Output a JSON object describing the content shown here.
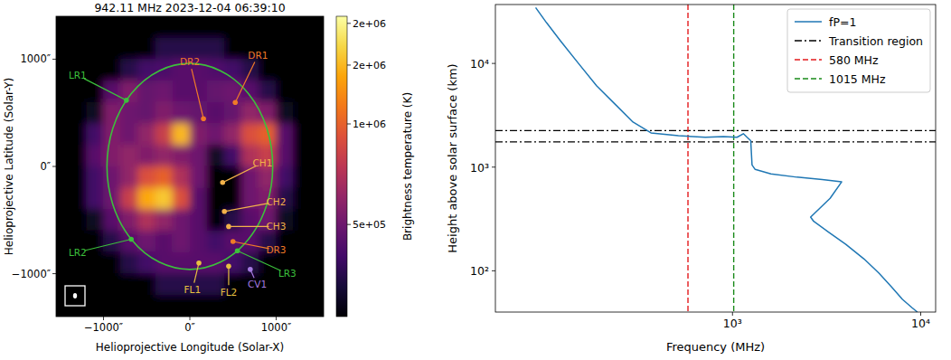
{
  "chart_data": [
    {
      "type": "heatmap",
      "title": "942.11 MHz 2023-12-04 06:39:10",
      "x_label": "Helioprojective Longitude (Solar-X)",
      "y_label": "Helioprojective Latitude (Solar-Y)",
      "xlim": [
        -1550,
        1550
      ],
      "ylim": [
        -1400,
        1400
      ],
      "xticks": [
        {
          "value": -1000,
          "label": "−1000″"
        },
        {
          "value": 0,
          "label": "0″"
        },
        {
          "value": 1000,
          "label": "1000″"
        }
      ],
      "yticks": [
        {
          "value": -1000,
          "label": "−1000″"
        },
        {
          "value": 0,
          "label": "0″"
        },
        {
          "value": 1000,
          "label": "1000″"
        }
      ],
      "x": [
        -1500,
        -1300,
        -1100,
        -900,
        -700,
        -500,
        -300,
        -100,
        100,
        300,
        500,
        700,
        900,
        1100,
        1300,
        1500
      ],
      "y": [
        1500,
        1300,
        1100,
        900,
        700,
        500,
        300,
        100,
        -100,
        -300,
        -500,
        -700,
        -900,
        -1100,
        -1300,
        -1500
      ],
      "values": [
        [
          100000,
          100000,
          100000,
          100000,
          100000,
          100000,
          100000,
          100000,
          100000,
          100000,
          100000,
          100000,
          100000,
          100000,
          100000,
          100000
        ],
        [
          100000,
          100000,
          100000,
          100000,
          100000,
          100000,
          100000,
          100000,
          100000,
          100000,
          100000,
          100000,
          100000,
          100000,
          100000,
          100000
        ],
        [
          100000,
          100000,
          100000,
          100000,
          100000,
          100000,
          350000,
          350000,
          350000,
          350000,
          100000,
          100000,
          100000,
          100000,
          100000,
          100000
        ],
        [
          100000,
          100000,
          100000,
          100000,
          350000,
          400000,
          420000,
          450000,
          450000,
          430000,
          400000,
          350000,
          100000,
          100000,
          100000,
          100000
        ],
        [
          100000,
          100000,
          100000,
          450000,
          550000,
          480000,
          500000,
          450000,
          450000,
          480000,
          500000,
          450000,
          350000,
          100000,
          100000,
          100000
        ],
        [
          100000,
          100000,
          300000,
          550000,
          500000,
          480000,
          550000,
          500000,
          480000,
          450000,
          480000,
          600000,
          550000,
          300000,
          100000,
          100000
        ],
        [
          100000,
          100000,
          400000,
          550000,
          500000,
          600000,
          800000,
          1500000,
          550000,
          500000,
          600000,
          900000,
          1000000,
          450000,
          100000,
          100000
        ],
        [
          100000,
          100000,
          450000,
          550000,
          600000,
          550000,
          600000,
          550000,
          500000,
          300000,
          400000,
          700000,
          800000,
          450000,
          100000,
          100000
        ],
        [
          100000,
          100000,
          400000,
          500000,
          600000,
          900000,
          1000000,
          700000,
          500000,
          200000,
          250000,
          500000,
          600000,
          400000,
          100000,
          100000
        ],
        [
          100000,
          100000,
          400000,
          500000,
          800000,
          1400000,
          1600000,
          900000,
          450000,
          200000,
          250000,
          500000,
          550000,
          350000,
          100000,
          100000
        ],
        [
          100000,
          100000,
          300000,
          450000,
          550000,
          700000,
          600000,
          500000,
          450000,
          250000,
          350000,
          450000,
          500000,
          300000,
          100000,
          100000
        ],
        [
          100000,
          100000,
          100000,
          350000,
          450000,
          500000,
          450000,
          500000,
          450000,
          400000,
          450000,
          450000,
          350000,
          100000,
          100000,
          100000
        ],
        [
          100000,
          100000,
          100000,
          100000,
          350000,
          400000,
          450000,
          450000,
          450000,
          450000,
          400000,
          350000,
          100000,
          100000,
          100000,
          100000
        ],
        [
          100000,
          100000,
          100000,
          100000,
          100000,
          100000,
          350000,
          350000,
          350000,
          350000,
          100000,
          100000,
          100000,
          100000,
          100000,
          100000
        ],
        [
          100000,
          100000,
          100000,
          100000,
          100000,
          100000,
          100000,
          100000,
          100000,
          100000,
          100000,
          100000,
          100000,
          100000,
          100000,
          100000
        ],
        [
          100000,
          100000,
          100000,
          100000,
          100000,
          100000,
          100000,
          100000,
          100000,
          100000,
          100000,
          100000,
          100000,
          100000,
          100000,
          100000
        ]
      ],
      "colorbar": {
        "label": "Brightness temperature (K)",
        "range": [
          265000,
          2100000
        ],
        "log": true,
        "ticks": [
          {
            "value": 500000,
            "label": "5e+05"
          },
          {
            "value": 1000000,
            "label": "1e+06"
          },
          {
            "value": 1500000,
            "label": "2e+06"
          },
          {
            "value": 2000000,
            "label": "2e+06"
          }
        ]
      },
      "limb_circle": {
        "radius": 960,
        "color": "#3cc03c"
      },
      "annotations": [
        {
          "text": "DR1",
          "xy": [
            526,
            597
          ],
          "xytext": [
            789,
            1034
          ],
          "color": "#f07a28"
        },
        {
          "text": "DR2",
          "xy": [
            158,
            445
          ],
          "xytext": [
            0,
            975
          ],
          "color": "#f07a28"
        },
        {
          "text": "DR3",
          "xy": [
            500,
            -700
          ],
          "xytext": [
            1000,
            -780
          ],
          "color": "#f07a28"
        },
        {
          "text": "CH1",
          "xy": [
            380,
            -150
          ],
          "xytext": [
            842,
            34
          ],
          "color": "#f2b24a"
        },
        {
          "text": "CH2",
          "xy": [
            400,
            -420
          ],
          "xytext": [
            1000,
            -330
          ],
          "color": "#f2b24a"
        },
        {
          "text": "CH3",
          "xy": [
            450,
            -560
          ],
          "xytext": [
            1000,
            -560
          ],
          "color": "#f2b24a"
        },
        {
          "text": "LR1",
          "xy": [
            -735,
            617
          ],
          "xytext": [
            -1300,
            850
          ],
          "color": "#3cc03c"
        },
        {
          "text": "LR2",
          "xy": [
            -679,
            -679
          ],
          "xytext": [
            -1300,
            -800
          ],
          "color": "#3cc03c"
        },
        {
          "text": "LR3",
          "xy": [
            551,
            -786
          ],
          "xytext": [
            1130,
            -1000
          ],
          "color": "#3cc03c"
        },
        {
          "text": "FL1",
          "xy": [
            105,
            -900
          ],
          "xytext": [
            30,
            -1150
          ],
          "color": "#e8c040"
        },
        {
          "text": "FL2",
          "xy": [
            450,
            -930
          ],
          "xytext": [
            450,
            -1175
          ],
          "color": "#e8c040"
        },
        {
          "text": "CV1",
          "xy": [
            700,
            -960
          ],
          "xytext": [
            780,
            -1100
          ],
          "color": "#a57ae0"
        }
      ]
    },
    {
      "type": "line",
      "x_label": "Frequency (MHz)",
      "y_label": "Height above solar surface (km)",
      "log": true,
      "xlim": [
        55,
        12000
      ],
      "ylim": [
        40,
        37000
      ],
      "xticks": [
        {
          "value": 1000,
          "label": "10³"
        },
        {
          "value": 10000,
          "label": "10⁴"
        }
      ],
      "yticks": [
        {
          "value": 100,
          "label": "10²"
        },
        {
          "value": 1000,
          "label": "10³"
        },
        {
          "value": 10000,
          "label": "10⁴"
        }
      ],
      "legend": "upper right",
      "series": [
        {
          "name": "fP=1",
          "color": "#1f77b4",
          "line_style": "solid",
          "x": [
            90,
            103,
            122,
            152,
            190,
            237,
            296,
            369,
            516,
            718,
            895,
            1057,
            1142,
            1195,
            1250,
            1270,
            1320,
            1600,
            2200,
            3000,
            3800,
            3300,
            2600,
            2700,
            3200,
            4000,
            5000,
            6000,
            7000,
            8000,
            9000,
            9600
          ],
          "values": [
            34600,
            24600,
            16500,
            10000,
            6060,
            4070,
            2720,
            2140,
            2010,
            1940,
            1970,
            1940,
            2100,
            1940,
            1800,
            1050,
            950,
            860,
            800,
            760,
            720,
            500,
            330,
            300,
            240,
            180,
            130,
            95,
            70,
            53,
            44,
            40
          ]
        }
      ],
      "hlines": {
        "name": "Transition region",
        "values": [
          1750,
          2250
        ],
        "color": "#000000",
        "line_style": "dashdot"
      },
      "vlines": [
        {
          "name": "580 MHz",
          "value": 580,
          "color": "#e41a1c",
          "line_style": "dashed"
        },
        {
          "name": "1015 MHz",
          "value": 1015,
          "color": "#1a8a1a",
          "line_style": "dashed"
        }
      ]
    }
  ]
}
